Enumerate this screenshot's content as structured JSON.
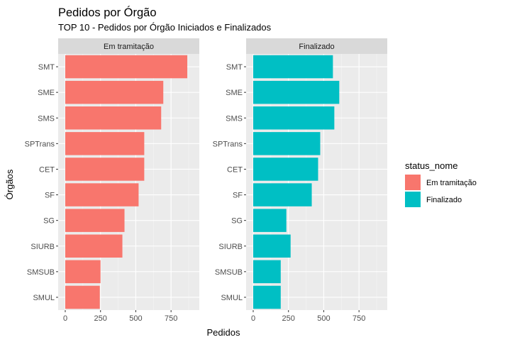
{
  "chart_data": {
    "type": "bar",
    "orientation": "horizontal",
    "title": "Pedidos por Órgão",
    "subtitle": "TOP 10 - Pedidos por Órgão Iniciados e Finalizados",
    "xlabel": "Pedidos",
    "ylabel": "Órgãos",
    "xlim": [
      0,
      900
    ],
    "x_ticks": [
      0,
      250,
      500,
      750
    ],
    "x_tick_labels": [
      "0",
      "250",
      "500",
      "750"
    ],
    "grid": true,
    "categories": [
      "SMT",
      "SME",
      "SMS",
      "SPTrans",
      "CET",
      "SF",
      "SG",
      "SIURB",
      "SMSUB",
      "SMUL"
    ],
    "legend": {
      "title": "status_nome",
      "placement": "right"
    },
    "series": [
      {
        "name": "Em tramitação",
        "facet": "Em tramitação",
        "color": "#F8766D",
        "values": [
          865,
          695,
          680,
          560,
          560,
          520,
          420,
          405,
          250,
          245
        ]
      },
      {
        "name": "Finalizado",
        "facet": "Finalizado",
        "color": "#00BFC4",
        "values": [
          565,
          610,
          575,
          475,
          460,
          415,
          235,
          265,
          195,
          195
        ]
      }
    ]
  }
}
